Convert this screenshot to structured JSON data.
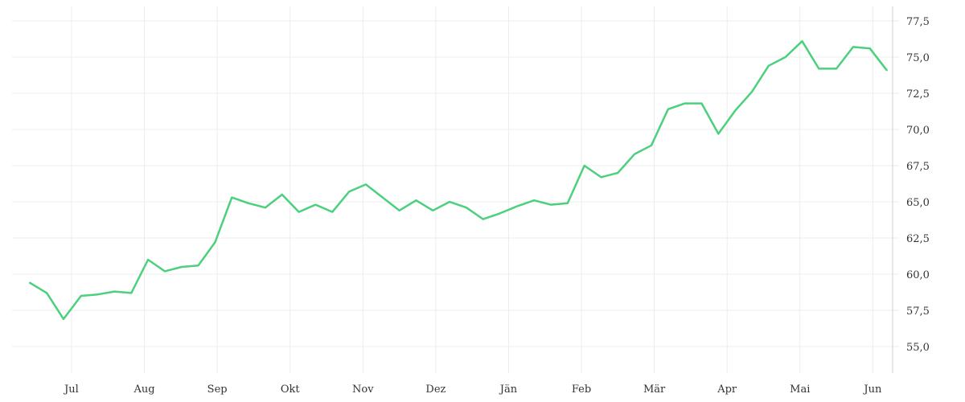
{
  "chart_data": {
    "type": "line",
    "title": "",
    "xlabel": "",
    "ylabel": "",
    "grid": true,
    "y_axis_side": "right",
    "ylim": [
      53.5,
      78.5
    ],
    "y_ticks": [
      "55,0",
      "57,5",
      "60,0",
      "62,5",
      "65,0",
      "67,5",
      "70,0",
      "72,5",
      "75,0",
      "77,5"
    ],
    "y_tick_values": [
      55,
      57.5,
      60,
      62.5,
      65,
      67.5,
      70,
      72.5,
      75,
      77.5
    ],
    "x_ticks": [
      "Jul",
      "Aug",
      "Sep",
      "Okt",
      "Nov",
      "Dez",
      "Jän",
      "Feb",
      "Mär",
      "Apr",
      "Mai",
      "Jun"
    ],
    "x_tick_positions": [
      1.0,
      2.0,
      3.0,
      4.0,
      5.0,
      6.0,
      7.0,
      8.0,
      9.0,
      10.0,
      11.0,
      12.0
    ],
    "xlim": [
      0.2,
      12.25
    ],
    "colors": {
      "line": "#4cd07d",
      "grid": "#ececec"
    },
    "series": [
      {
        "x": [
          0.43,
          0.66,
          0.89,
          1.13,
          1.36,
          1.59,
          1.82,
          2.05,
          2.28,
          2.51,
          2.74,
          2.97,
          3.2,
          3.43,
          3.66,
          3.89,
          4.12,
          4.35,
          4.58,
          4.81,
          5.04,
          5.27,
          5.5,
          5.73,
          5.96,
          6.19,
          6.42,
          6.65,
          6.88,
          7.12,
          7.35,
          7.58,
          7.81,
          8.04,
          8.27,
          8.5,
          8.73,
          8.96,
          9.19,
          9.42,
          9.65,
          9.88,
          10.11,
          10.34,
          10.57,
          10.8,
          11.03,
          11.26,
          11.5,
          11.73,
          11.96,
          12.19
        ],
        "values": [
          59.4,
          58.7,
          56.9,
          58.5,
          58.6,
          58.8,
          58.7,
          61.0,
          60.2,
          60.5,
          60.6,
          62.2,
          65.3,
          64.9,
          64.6,
          65.5,
          64.3,
          64.8,
          64.3,
          65.7,
          66.2,
          65.3,
          64.4,
          65.1,
          64.4,
          65.0,
          64.6,
          63.8,
          64.2,
          64.7,
          65.1,
          64.8,
          64.9,
          67.5,
          66.7,
          67.0,
          68.3,
          68.9,
          71.4,
          71.8,
          71.8,
          69.7,
          71.3,
          72.6,
          74.4,
          75.0,
          76.1,
          74.2,
          74.2,
          75.7,
          75.6,
          74.1
        ]
      }
    ]
  }
}
